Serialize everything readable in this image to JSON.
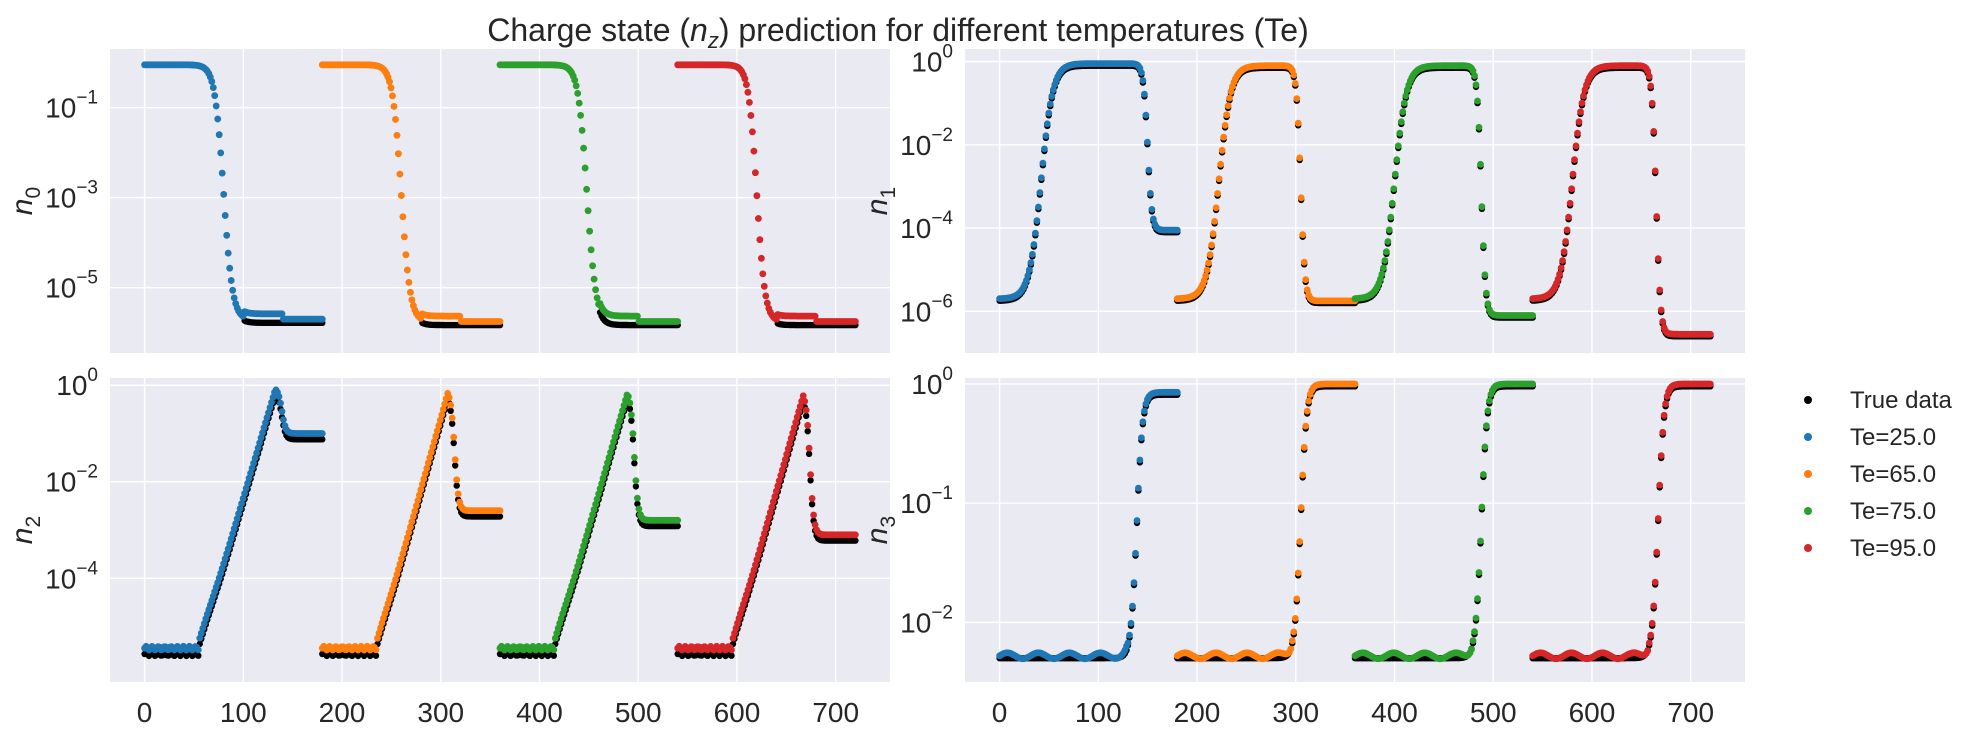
{
  "chart_data": {
    "type": "scatter",
    "title_pre": "Charge state (",
    "title_var": "n",
    "title_sub": "z",
    "title_post": ") prediction for different temperatures (Te)",
    "colors": {
      "true_data": "#000000",
      "Te=25.0": "#1f77b4",
      "Te=65.0": "#ff7f0e",
      "Te=75.0": "#2ca02c",
      "Te=95.0": "#d62728",
      "background": "#eaeaf2",
      "grid": "#ffffff"
    },
    "legend": {
      "placement": "right",
      "entries": [
        "True data",
        "Te=25.0",
        "Te=65.0",
        "Te=75.0",
        "Te=95.0"
      ]
    },
    "x_ticks": [
      0,
      100,
      200,
      300,
      400,
      500,
      600,
      700
    ],
    "xlim": [
      -35,
      755
    ],
    "segment_offsets": [
      0,
      180,
      360,
      540
    ],
    "segment_length": 180,
    "panels": [
      {
        "id": "n0",
        "ylabel_var": "n",
        "ylabel_sub": "0",
        "yscale": "log",
        "ylim_exp": [
          -6.45,
          0.3
        ],
        "y_tick_exps": [
          -5,
          -3,
          -1
        ],
        "series": [
          {
            "name": "Te=25.0",
            "start_exp": -0.05,
            "end_exp": -5.7,
            "center": 80,
            "width": 4.5
          },
          {
            "name": "Te=65.0",
            "start_exp": -0.05,
            "end_exp": -5.75,
            "center": 80,
            "width": 4.5
          },
          {
            "name": "Te=75.0",
            "start_exp": -0.05,
            "end_exp": -5.75,
            "center": 88,
            "width": 4.5
          },
          {
            "name": "Te=95.0",
            "start_exp": -0.05,
            "end_exp": -5.75,
            "center": 80,
            "width": 4.2
          }
        ]
      },
      {
        "id": "n1",
        "ylabel_var": "n",
        "ylabel_sub": "1",
        "yscale": "log",
        "ylim_exp": [
          -7.0,
          0.3
        ],
        "y_tick_exps": [
          -6,
          -4,
          -2,
          0
        ],
        "series": [
          {
            "name": "Te=25.0",
            "base_exp": -5.7,
            "peak_exp": -0.05,
            "rise_center": 42,
            "fall_center": 150,
            "plateau_exp": -4.05
          },
          {
            "name": "Te=65.0",
            "base_exp": -5.7,
            "peak_exp": -0.1,
            "rise_center": 42,
            "fall_center": 125,
            "plateau_exp": -5.75
          },
          {
            "name": "Te=75.0",
            "base_exp": -5.7,
            "peak_exp": -0.1,
            "rise_center": 40,
            "fall_center": 128,
            "plateau_exp": -6.1
          },
          {
            "name": "Te=95.0",
            "base_exp": -5.7,
            "peak_exp": -0.1,
            "rise_center": 40,
            "fall_center": 125,
            "plateau_exp": -6.55
          }
        ]
      },
      {
        "id": "n2",
        "ylabel_var": "n",
        "ylabel_sub": "2",
        "yscale": "log",
        "ylim_exp": [
          -6.15,
          0.15
        ],
        "y_tick_exps": [
          -4,
          -2,
          0
        ],
        "series": [
          {
            "name": "Te=25.0",
            "base_exp": -5.45,
            "peak_exp": -0.05,
            "peak_at": 133,
            "plateau_exp": -1.0
          },
          {
            "name": "Te=65.0",
            "base_exp": -5.45,
            "peak_exp": -0.1,
            "peak_at": 128,
            "plateau_exp": -2.6
          },
          {
            "name": "Te=75.0",
            "base_exp": -5.45,
            "peak_exp": -0.1,
            "peak_at": 130,
            "plateau_exp": -2.8
          },
          {
            "name": "Te=95.0",
            "base_exp": -5.45,
            "peak_exp": -0.15,
            "peak_at": 128,
            "plateau_exp": -3.1
          }
        ]
      },
      {
        "id": "n3",
        "ylabel_var": "n",
        "ylabel_sub": "3",
        "yscale": "log",
        "ylim_exp": [
          -2.5,
          0.05
        ],
        "y_tick_exps": [
          -2,
          -1,
          0
        ],
        "series": [
          {
            "name": "Te=25.0",
            "base_exp": -2.28,
            "end_exp": -0.07,
            "rise_center": 139
          },
          {
            "name": "Te=65.0",
            "base_exp": -2.28,
            "end_exp": 0.0,
            "rise_center": 125
          },
          {
            "name": "Te=75.0",
            "base_exp": -2.28,
            "end_exp": 0.0,
            "rise_center": 128
          },
          {
            "name": "Te=95.0",
            "base_exp": -2.28,
            "end_exp": 0.0,
            "rise_center": 127
          }
        ]
      }
    ]
  }
}
